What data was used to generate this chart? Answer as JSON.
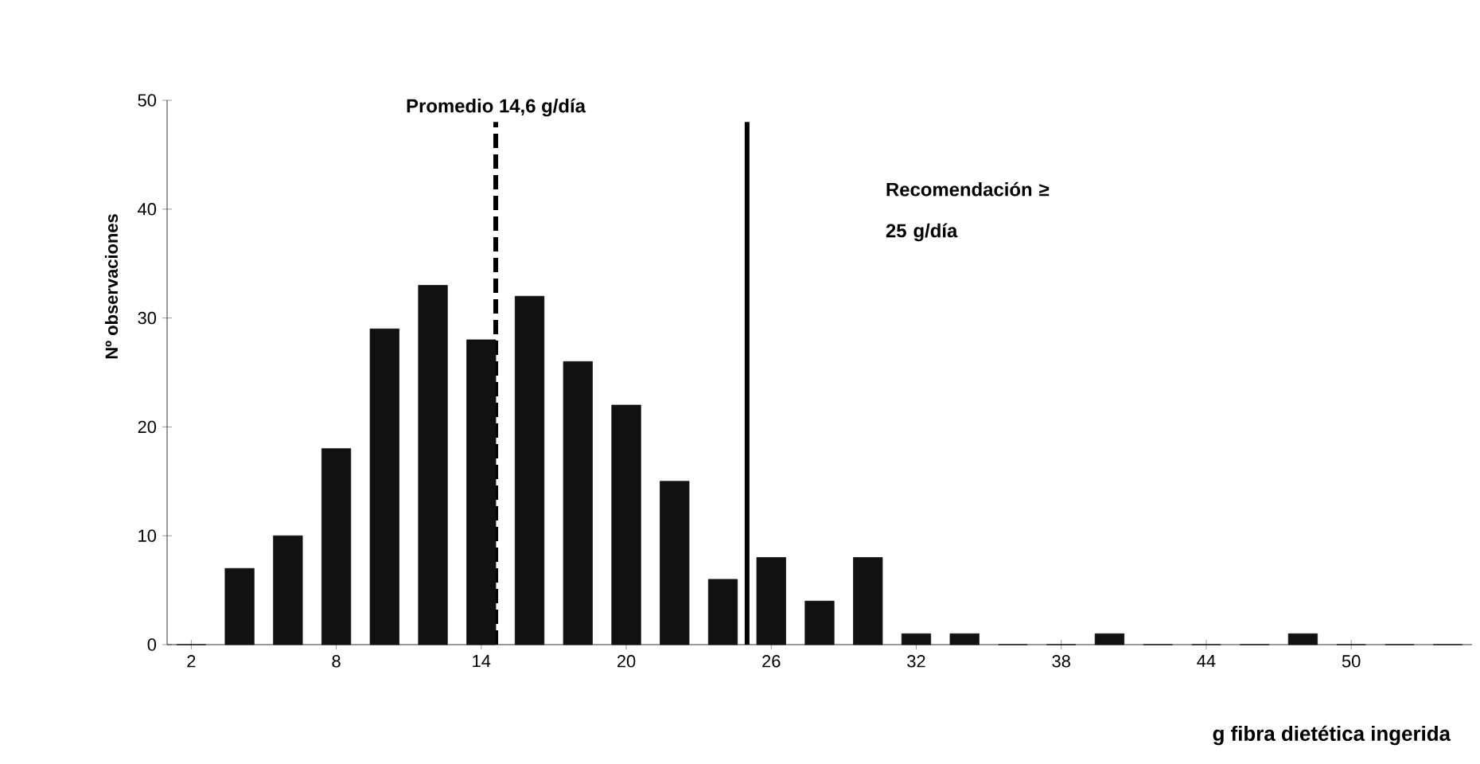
{
  "chart_data": {
    "type": "bar",
    "xlabel": "g fibra dietética ingerida",
    "ylabel": "Nº observaciones",
    "x": [
      2,
      4,
      6,
      8,
      10,
      12,
      14,
      16,
      18,
      20,
      22,
      24,
      26,
      28,
      30,
      32,
      34,
      36,
      38,
      40,
      42,
      44,
      46,
      48,
      50,
      52,
      54
    ],
    "values": [
      0,
      7,
      10,
      18,
      29,
      33,
      28,
      32,
      26,
      22,
      15,
      6,
      8,
      4,
      8,
      1,
      1,
      0,
      0,
      1,
      0,
      0,
      0,
      1,
      0,
      0,
      0
    ],
    "color": "#111111",
    "xlim": [
      1,
      55
    ],
    "xticks": [
      2,
      8,
      14,
      20,
      26,
      32,
      38,
      44,
      50
    ],
    "ylim": [
      0,
      50
    ],
    "yticks": [
      0,
      10,
      20,
      30,
      40,
      50
    ],
    "grid": false,
    "ref_lines": [
      {
        "axis": "x",
        "value": 14.6,
        "label": "Promedio 14,6 g/día",
        "line_style": "dashed",
        "color": "#000000"
      },
      {
        "axis": "x",
        "value": 25,
        "label": "Recomendación ≥ 25 g/día",
        "line_style": "solid",
        "color": "#000000"
      }
    ]
  }
}
